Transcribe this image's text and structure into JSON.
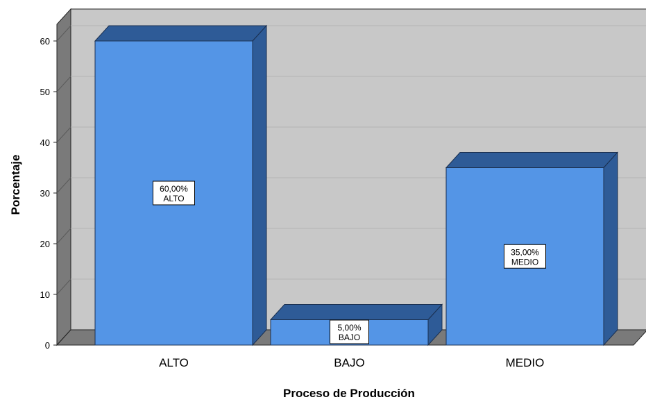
{
  "chart_data": {
    "type": "bar",
    "style": "3d",
    "categories": [
      "ALTO",
      "BAJO",
      "MEDIO"
    ],
    "values": [
      60,
      5,
      35
    ],
    "data_labels": [
      {
        "value": "60,00%",
        "category": "ALTO"
      },
      {
        "value": "5,00%",
        "category": "BAJO"
      },
      {
        "value": "35,00%",
        "category": "MEDIO"
      }
    ],
    "xlabel": "Proceso de Producción",
    "ylabel": "Porcentaje",
    "ylim": [
      0,
      60
    ],
    "yticks": [
      0,
      10,
      20,
      30,
      40,
      50,
      60
    ],
    "grid": true,
    "colors": {
      "bar_front": "#5495e6",
      "bar_top": "#2e5b97",
      "bar_side": "#2e5b97",
      "wall": "#c8c8c8",
      "wall_side": "#7a7a7a",
      "floor": "#7a7a7a",
      "grid": "#b4b4b4"
    }
  }
}
